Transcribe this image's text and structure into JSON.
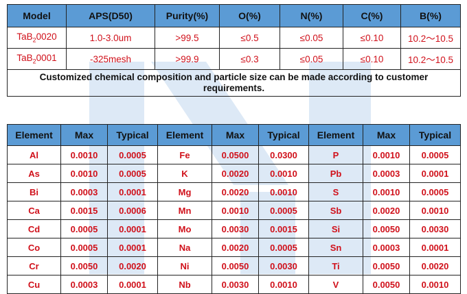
{
  "spec_table": {
    "headers": [
      "Model",
      "APS(D50)",
      "Purity(%)",
      "O(%)",
      "N(%)",
      "C(%)",
      "B(%)"
    ],
    "rows": [
      {
        "model_prefix": "TaB",
        "model_sub": "2",
        "model_suffix": "0020",
        "aps": "1.0-3.0um",
        "purity": ">99.5",
        "o": "≤0.5",
        "n": "≤0.05",
        "c": "≤0.10",
        "b": "10.2～10.5"
      },
      {
        "model_prefix": "TaB",
        "model_sub": "2",
        "model_suffix": "0001",
        "aps": "-325mesh",
        "purity": ">99.9",
        "o": "≤0.3",
        "n": "≤0.05",
        "c": "≤0.10",
        "b": "10.2～10.5"
      }
    ],
    "note": "Customized chemical composition and particle size can be made according to customer requirements."
  },
  "impurity_table": {
    "headers": [
      "Element",
      "Max",
      "Typical",
      "Element",
      "Max",
      "Typical",
      "Element",
      "Max",
      "Typical"
    ],
    "rows": [
      [
        "Al",
        "0.0010",
        "0.0005",
        "Fe",
        "0.0500",
        "0.0300",
        "P",
        "0.0010",
        "0.0005"
      ],
      [
        "As",
        "0.0010",
        "0.0005",
        "K",
        "0.0020",
        "0.0010",
        "Pb",
        "0.0003",
        "0.0001"
      ],
      [
        "Bi",
        "0.0003",
        "0.0001",
        "Mg",
        "0.0020",
        "0.0010",
        "S",
        "0.0010",
        "0.0005"
      ],
      [
        "Ca",
        "0.0015",
        "0.0006",
        "Mn",
        "0.0010",
        "0.0005",
        "Sb",
        "0.0020",
        "0.0010"
      ],
      [
        "Cd",
        "0.0005",
        "0.0001",
        "Mo",
        "0.0030",
        "0.0015",
        "Si",
        "0.0050",
        "0.0030"
      ],
      [
        "Co",
        "0.0005",
        "0.0001",
        "Na",
        "0.0020",
        "0.0005",
        "Sn",
        "0.0003",
        "0.0001"
      ],
      [
        "Cr",
        "0.0050",
        "0.0020",
        "Ni",
        "0.0050",
        "0.0030",
        "Ti",
        "0.0050",
        "0.0020"
      ],
      [
        "Cu",
        "0.0003",
        "0.0001",
        "Nb",
        "0.0030",
        "0.0010",
        "V",
        "0.0050",
        "0.0010"
      ]
    ]
  },
  "colors": {
    "header_bg": "#5b9bd5",
    "value_text": "#d0101a",
    "watermark": "#dde9f6"
  },
  "watermark": {
    "icon": "logo-watermark-icon"
  }
}
